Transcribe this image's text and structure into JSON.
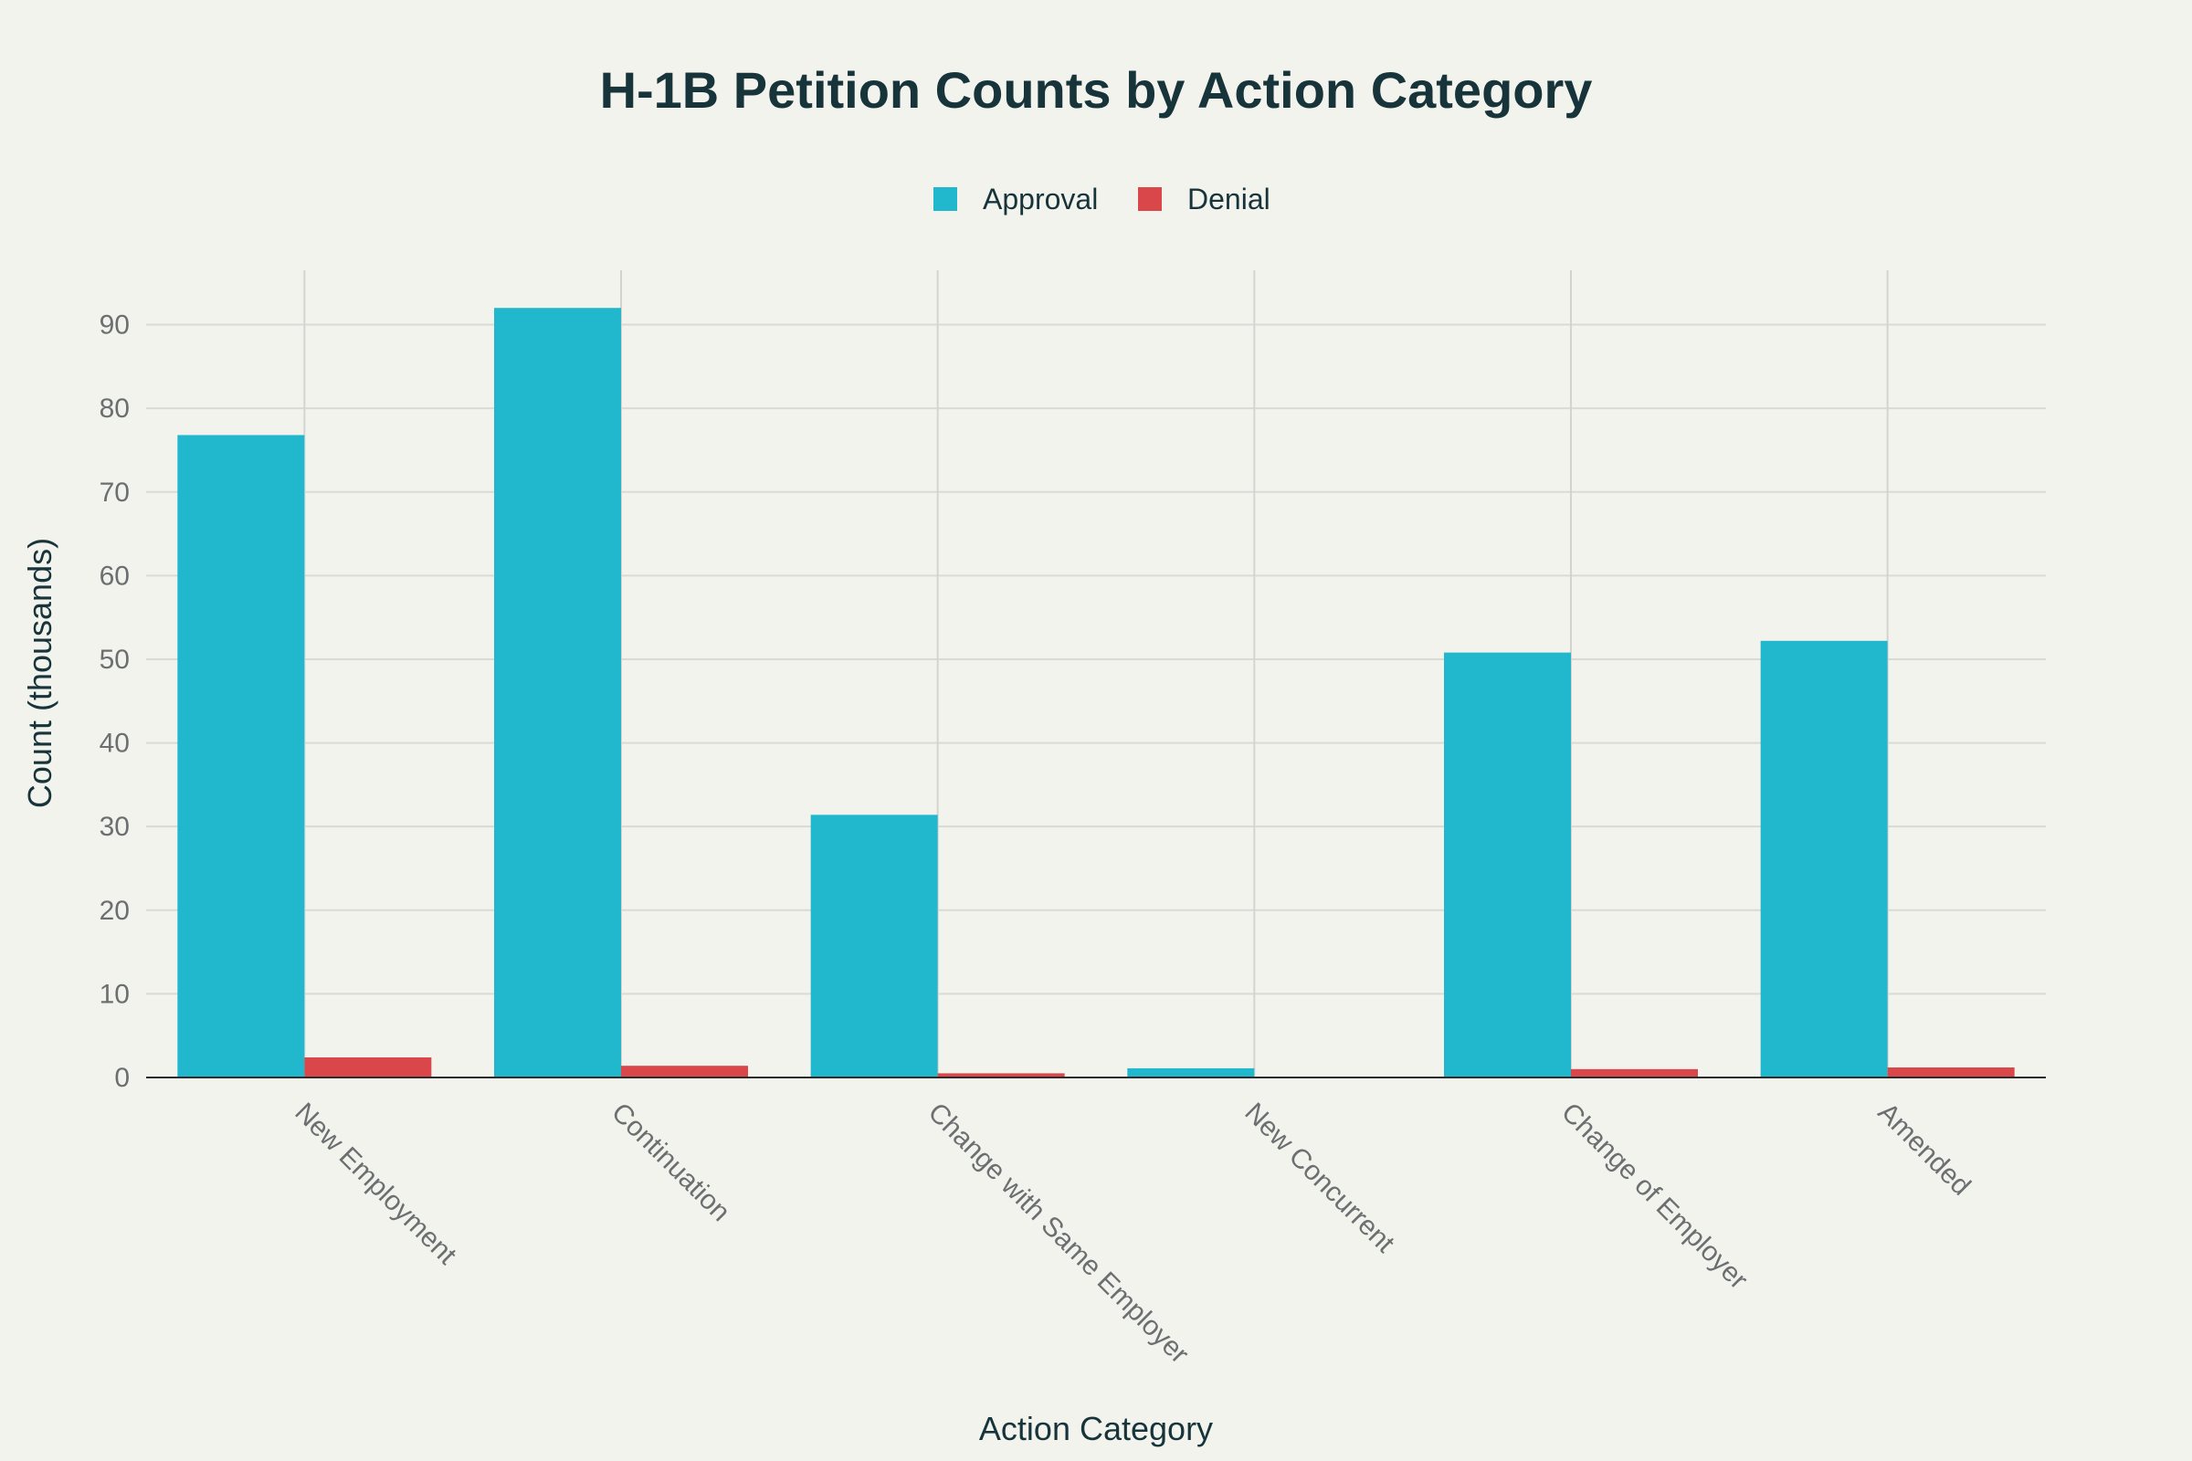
{
  "chart_data": {
    "type": "bar",
    "title": "H-1B Petition Counts by Action Category",
    "xlabel": "Action Category",
    "ylabel": "Count (thousands)",
    "ylim": [
      0,
      96.5
    ],
    "yticks": [
      0,
      10,
      20,
      30,
      40,
      50,
      60,
      70,
      80,
      90
    ],
    "grid": true,
    "legend": "top-center",
    "categories": [
      "New Employment",
      "Continuation",
      "Change with Same Employer",
      "New Concurrent",
      "Change of Employer",
      "Amended"
    ],
    "series": [
      {
        "name": "Approval",
        "color": "#21b7cc",
        "values": [
          76.8,
          92.0,
          31.4,
          1.1,
          50.8,
          52.2
        ]
      },
      {
        "name": "Denial",
        "color": "#d9474a",
        "values": [
          2.4,
          1.4,
          0.5,
          0.1,
          1.0,
          1.2
        ]
      }
    ]
  }
}
